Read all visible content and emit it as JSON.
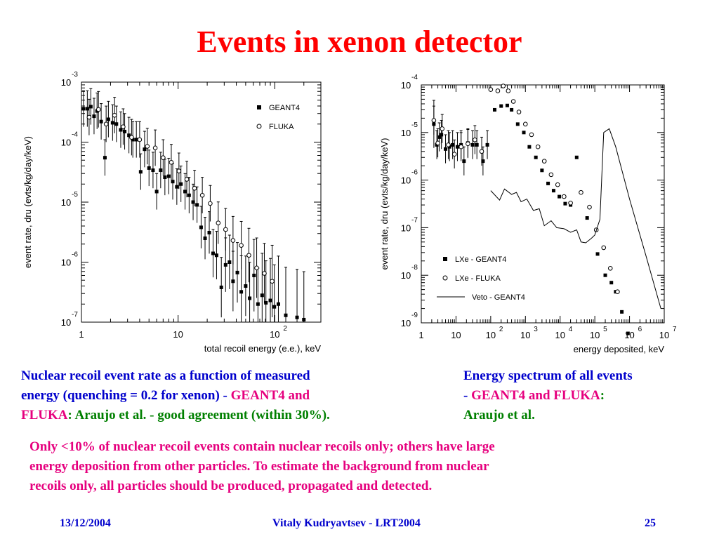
{
  "title": "Events in xenon detector",
  "colors": {
    "title": "#ff0000",
    "caption": "#0000cc",
    "highlight": "#e6007e",
    "green": "#008000"
  },
  "chart_data": [
    {
      "type": "scatter",
      "ylabel": "event rate, dru (evts/kg/day/keV)",
      "xlabel": "total recoil energy (e.e.), keV",
      "xscale": "log",
      "yscale": "log",
      "xlim": [
        1,
        300
      ],
      "ylim": [
        1e-07,
        0.001
      ],
      "x_ticks": [
        {
          "v": 1,
          "base": "1",
          "exp": ""
        },
        {
          "v": 10,
          "base": "10",
          "exp": ""
        },
        {
          "v": 100,
          "base": "10",
          "exp": "2"
        }
      ],
      "y_ticks": [
        {
          "v": 0.001,
          "base": "10",
          "exp": "-3"
        },
        {
          "v": 0.0001,
          "base": "10",
          "exp": "-4"
        },
        {
          "v": 1e-05,
          "base": "10",
          "exp": "-5"
        },
        {
          "v": 1e-06,
          "base": "10",
          "exp": "-6"
        },
        {
          "v": 1e-07,
          "base": "10",
          "exp": "-7"
        }
      ],
      "legend_position": "top-right",
      "series": [
        {
          "name": "GEANT4",
          "marker": "filled-square",
          "points": [
            [
              1.05,
              0.00036,
              0.3
            ],
            [
              1.15,
              0.00036,
              0.3
            ],
            [
              1.25,
              0.00039,
              0.3
            ],
            [
              1.35,
              0.00027,
              0.3
            ],
            [
              1.45,
              0.00033,
              0.3
            ],
            [
              1.6,
              0.00022,
              0.3
            ],
            [
              1.75,
              5.5e-05,
              0.3
            ],
            [
              1.9,
              0.00024,
              0.3
            ],
            [
              2.1,
              0.00021,
              0.3
            ],
            [
              2.3,
              0.0002,
              0.3
            ],
            [
              2.55,
              0.00016,
              0.3
            ],
            [
              2.8,
              0.00015,
              0.3
            ],
            [
              3.1,
              0.00013,
              0.3
            ],
            [
              3.4,
              0.00011,
              0.3
            ],
            [
              3.7,
              0.00011,
              0.3
            ],
            [
              4.1,
              3.2e-05,
              0.3
            ],
            [
              4.5,
              7.6e-05,
              0.3
            ],
            [
              5.0,
              3.7e-05,
              0.3
            ],
            [
              5.5,
              3.4e-05,
              0.3
            ],
            [
              6.0,
              1.5e-05,
              0.3
            ],
            [
              6.6,
              3.4e-05,
              0.3
            ],
            [
              7.3,
              2.6e-05,
              0.3
            ],
            [
              8.0,
              2.7e-05,
              0.3
            ],
            [
              8.8,
              2.2e-05,
              0.3
            ],
            [
              9.7,
              1.8e-05,
              0.3
            ],
            [
              10.7,
              2e-05,
              0.3
            ],
            [
              11.8,
              1.5e-05,
              0.3
            ],
            [
              13,
              1.3e-05,
              0.3
            ],
            [
              14.3,
              1e-05,
              0.3
            ],
            [
              15.7,
              9e-06,
              0.3
            ],
            [
              17.3,
              3.8e-06,
              0.35
            ],
            [
              19,
              2.5e-06,
              0.35
            ],
            [
              21,
              3.1e-06,
              0.35
            ],
            [
              23,
              1.4e-06,
              0.4
            ],
            [
              25,
              1.3e-06,
              0.4
            ],
            [
              28,
              3.8e-07,
              0.5
            ],
            [
              31,
              9e-07,
              0.45
            ],
            [
              34,
              1e-06,
              0.45
            ],
            [
              37,
              4.8e-07,
              0.5
            ],
            [
              41,
              6.7e-07,
              0.5
            ],
            [
              45,
              3.2e-07,
              0.6
            ],
            [
              50,
              4e-07,
              0.5
            ],
            [
              55,
              2.5e-07,
              0.6
            ],
            [
              61,
              6e-07,
              0.6
            ],
            [
              67,
              2e-07,
              0.6
            ],
            [
              74,
              2.8e-07,
              0.7
            ],
            [
              81,
              2.1e-07,
              0.7
            ],
            [
              90,
              2.3e-07,
              0.7
            ],
            [
              99,
              1.8e-07,
              0.7
            ],
            [
              109,
              2e-07,
              0.8
            ],
            [
              130,
              1.3e-07,
              0.8
            ],
            [
              170,
              1.2e-07,
              0.8
            ],
            [
              200,
              1.1e-07,
              0.8
            ]
          ]
        },
        {
          "name": "FLUKA",
          "marker": "open-circle",
          "points": [
            [
              1.2,
              0.00026,
              0.3
            ],
            [
              1.5,
              0.00035,
              0.3
            ],
            [
              1.8,
              0.0002,
              0.3
            ],
            [
              2.2,
              0.00028,
              0.3
            ],
            [
              2.7,
              0.00018,
              0.3
            ],
            [
              3.3,
              0.00012,
              0.3
            ],
            [
              4.0,
              0.00011,
              0.3
            ],
            [
              4.8,
              8.5e-05,
              0.3
            ],
            [
              5.8,
              8e-05,
              0.3
            ],
            [
              7.0,
              5.5e-05,
              0.3
            ],
            [
              8.5,
              4.6e-05,
              0.3
            ],
            [
              10.2,
              3.3e-05,
              0.3
            ],
            [
              12.3,
              2.4e-05,
              0.3
            ],
            [
              14.8,
              1.7e-05,
              0.3
            ],
            [
              17.8,
              1.3e-05,
              0.3
            ],
            [
              21.5,
              9.5e-06,
              0.3
            ],
            [
              26,
              4.5e-06,
              0.35
            ],
            [
              31,
              3.5e-06,
              0.35
            ],
            [
              37,
              2.3e-06,
              0.4
            ],
            [
              45,
              1.9e-06,
              0.4
            ],
            [
              54,
              1.3e-06,
              0.45
            ],
            [
              65,
              8e-07,
              0.5
            ],
            [
              78,
              6.5e-07,
              0.5
            ],
            [
              94,
              4.8e-07,
              0.6
            ]
          ]
        }
      ]
    },
    {
      "type": "scatter",
      "ylabel": "event rate, dru (evts/kg/day/keV)",
      "xlabel": "energy deposited, keV",
      "xscale": "log",
      "yscale": "log",
      "xlim": [
        1,
        10000000.0
      ],
      "ylim": [
        1e-09,
        0.0001
      ],
      "x_ticks": [
        {
          "v": 1,
          "base": "1",
          "exp": ""
        },
        {
          "v": 10,
          "base": "10",
          "exp": ""
        },
        {
          "v": 100,
          "base": "10",
          "exp": "2"
        },
        {
          "v": 1000,
          "base": "10",
          "exp": "3"
        },
        {
          "v": 10000,
          "base": "10",
          "exp": "4"
        },
        {
          "v": 100000,
          "base": "10",
          "exp": "5"
        },
        {
          "v": 1000000,
          "base": "10",
          "exp": "6"
        },
        {
          "v": 10000000,
          "base": "10",
          "exp": "7"
        }
      ],
      "y_ticks": [
        {
          "v": 0.0001,
          "base": "10",
          "exp": "-4"
        },
        {
          "v": 1e-05,
          "base": "10",
          "exp": "-5"
        },
        {
          "v": 1e-06,
          "base": "10",
          "exp": "-6"
        },
        {
          "v": 1e-07,
          "base": "10",
          "exp": "-7"
        },
        {
          "v": 1e-08,
          "base": "10",
          "exp": "-8"
        },
        {
          "v": 1e-09,
          "base": "10",
          "exp": "-9"
        }
      ],
      "legend_position": "bottom-left",
      "series": [
        {
          "name": "LXe - GEANT4",
          "marker": "filled-square",
          "points": [
            [
              2.3,
              1.5e-05,
              0.5
            ],
            [
              2.8,
              5.5e-06,
              0.3
            ],
            [
              3.3,
              8e-06,
              0.3
            ],
            [
              3.8,
              9e-06,
              0.3
            ],
            [
              5,
              4.5e-06,
              0.3
            ],
            [
              6.5,
              5e-06,
              0.3
            ],
            [
              8,
              5.5e-06,
              0.3
            ],
            [
              11,
              5e-06,
              0.3
            ],
            [
              14,
              5.5e-06,
              0.3
            ],
            [
              17,
              2.5e-06,
              0.3
            ],
            [
              22,
              6e-06,
              0.3
            ],
            [
              30,
              5.5e-06,
              0.3
            ],
            [
              40,
              5.5e-06,
              0.3
            ],
            [
              60,
              2.5e-06,
              0.3
            ],
            [
              80,
              5.5e-06,
              0.3
            ],
            [
              130,
              3e-05,
              0
            ],
            [
              200,
              3.6e-05,
              0
            ],
            [
              300,
              3.7e-05,
              0
            ],
            [
              400,
              3e-05,
              0
            ],
            [
              600,
              1.5e-05,
              0
            ],
            [
              900,
              1e-05,
              0
            ],
            [
              1300,
              5e-06,
              0
            ],
            [
              2000,
              3e-06,
              0
            ],
            [
              3000,
              1.6e-06,
              0
            ],
            [
              4500,
              8.5e-07,
              0
            ],
            [
              6500,
              6e-07,
              0
            ],
            [
              9500,
              4.5e-07,
              0
            ],
            [
              14000,
              3.2e-07,
              0
            ],
            [
              20000,
              3e-07,
              0
            ],
            [
              30000,
              3e-06,
              0
            ],
            [
              60000,
              1.6e-07,
              0
            ],
            [
              120000,
              2.8e-08,
              0
            ],
            [
              200000,
              1e-08,
              0
            ],
            [
              300000,
              7e-09,
              0
            ],
            [
              400000,
              4.5e-09,
              0
            ],
            [
              600000,
              1.7e-09,
              0
            ],
            [
              900000,
              6e-10,
              0
            ]
          ]
        },
        {
          "name": "LXe - FLUKA",
          "marker": "open-circle",
          "points": [
            [
              2.3,
              1.8e-05,
              0.3
            ],
            [
              3.0,
              6e-06,
              0.3
            ],
            [
              4.0,
              1.2e-05,
              0.3
            ],
            [
              6.0,
              5.5e-06,
              0.3
            ],
            [
              9.0,
              3.5e-06,
              0.3
            ],
            [
              14,
              5e-06,
              0.3
            ],
            [
              22,
              5.8e-06,
              0.3
            ],
            [
              35,
              7e-06,
              0.3
            ],
            [
              55,
              4e-06,
              0.3
            ],
            [
              100,
              8e-05,
              0
            ],
            [
              160,
              7.5e-05,
              0
            ],
            [
              230,
              9.5e-05,
              0
            ],
            [
              320,
              7.5e-05,
              0
            ],
            [
              450,
              4.5e-05,
              0
            ],
            [
              650,
              2.7e-05,
              0
            ],
            [
              1000,
              1.5e-05,
              0
            ],
            [
              1500,
              9e-06,
              0
            ],
            [
              2300,
              5e-06,
              0
            ],
            [
              3500,
              2.5e-06,
              0
            ],
            [
              5500,
              1.3e-06,
              0
            ],
            [
              8500,
              8e-07,
              0
            ],
            [
              13000,
              4.5e-07,
              0
            ],
            [
              20000,
              3.3e-07,
              0
            ],
            [
              40000,
              5.5e-07,
              0
            ],
            [
              70000,
              2.7e-07,
              0
            ],
            [
              110000,
              9e-08,
              0
            ],
            [
              180000,
              3.8e-08,
              0
            ],
            [
              280000,
              1.4e-08,
              0
            ],
            [
              450000,
              4.5e-09,
              0
            ]
          ]
        },
        {
          "name": "Veto - GEANT4",
          "marker": "line",
          "points": [
            [
              100,
              6e-07
            ],
            [
              180,
              3.8e-07
            ],
            [
              250,
              6.5e-07
            ],
            [
              400,
              5e-07
            ],
            [
              550,
              5.5e-07
            ],
            [
              750,
              3.5e-07
            ],
            [
              1100,
              4e-07
            ],
            [
              1700,
              2.3e-07
            ],
            [
              2500,
              2.5e-07
            ],
            [
              3500,
              1.1e-07
            ],
            [
              5500,
              1.4e-07
            ],
            [
              8000,
              1e-07
            ],
            [
              13000,
              9.5e-08
            ],
            [
              20000,
              8e-08
            ],
            [
              30000,
              9e-08
            ],
            [
              40000,
              5e-08
            ],
            [
              55000,
              4.8e-08
            ],
            [
              80000,
              6e-08
            ],
            [
              100000,
              7e-08
            ],
            [
              140000,
              1.5e-07
            ],
            [
              180000,
              1e-05
            ],
            [
              260000,
              1.2e-05
            ],
            [
              400000,
              5e-06
            ],
            [
              1000000,
              4e-07
            ],
            [
              3000000,
              2.5e-08
            ],
            [
              8000000,
              2e-09
            ]
          ]
        }
      ]
    }
  ],
  "captions": {
    "left": {
      "line1": "Nuclear recoil event rate as a function of measured",
      "line2a": "energy (quenching = 0.2 for xenon) - ",
      "line2b": "GEANT4 and",
      "line3a": "FLUKA",
      "line3b": ": Araujo et al. - good agreement (within 30%)."
    },
    "right": {
      "line1": "Energy spectrum of all events",
      "line2a": "- ",
      "line2b": "GEANT4 and FLUKA",
      "line2c": ":",
      "line3": "Araujo et al."
    },
    "bottom": {
      "line1": "Only <10% of  nuclear recoil events contain nuclear recoils only; others have large",
      "line2": "energy deposition from other particles. To estimate the background from nuclear",
      "line3": "recoils only, all particles should be produced, propagated and detected."
    }
  },
  "footer": {
    "date": "13/12/2004",
    "author": "Vitaly Kudryavtsev - LRT2004",
    "page": "25"
  }
}
